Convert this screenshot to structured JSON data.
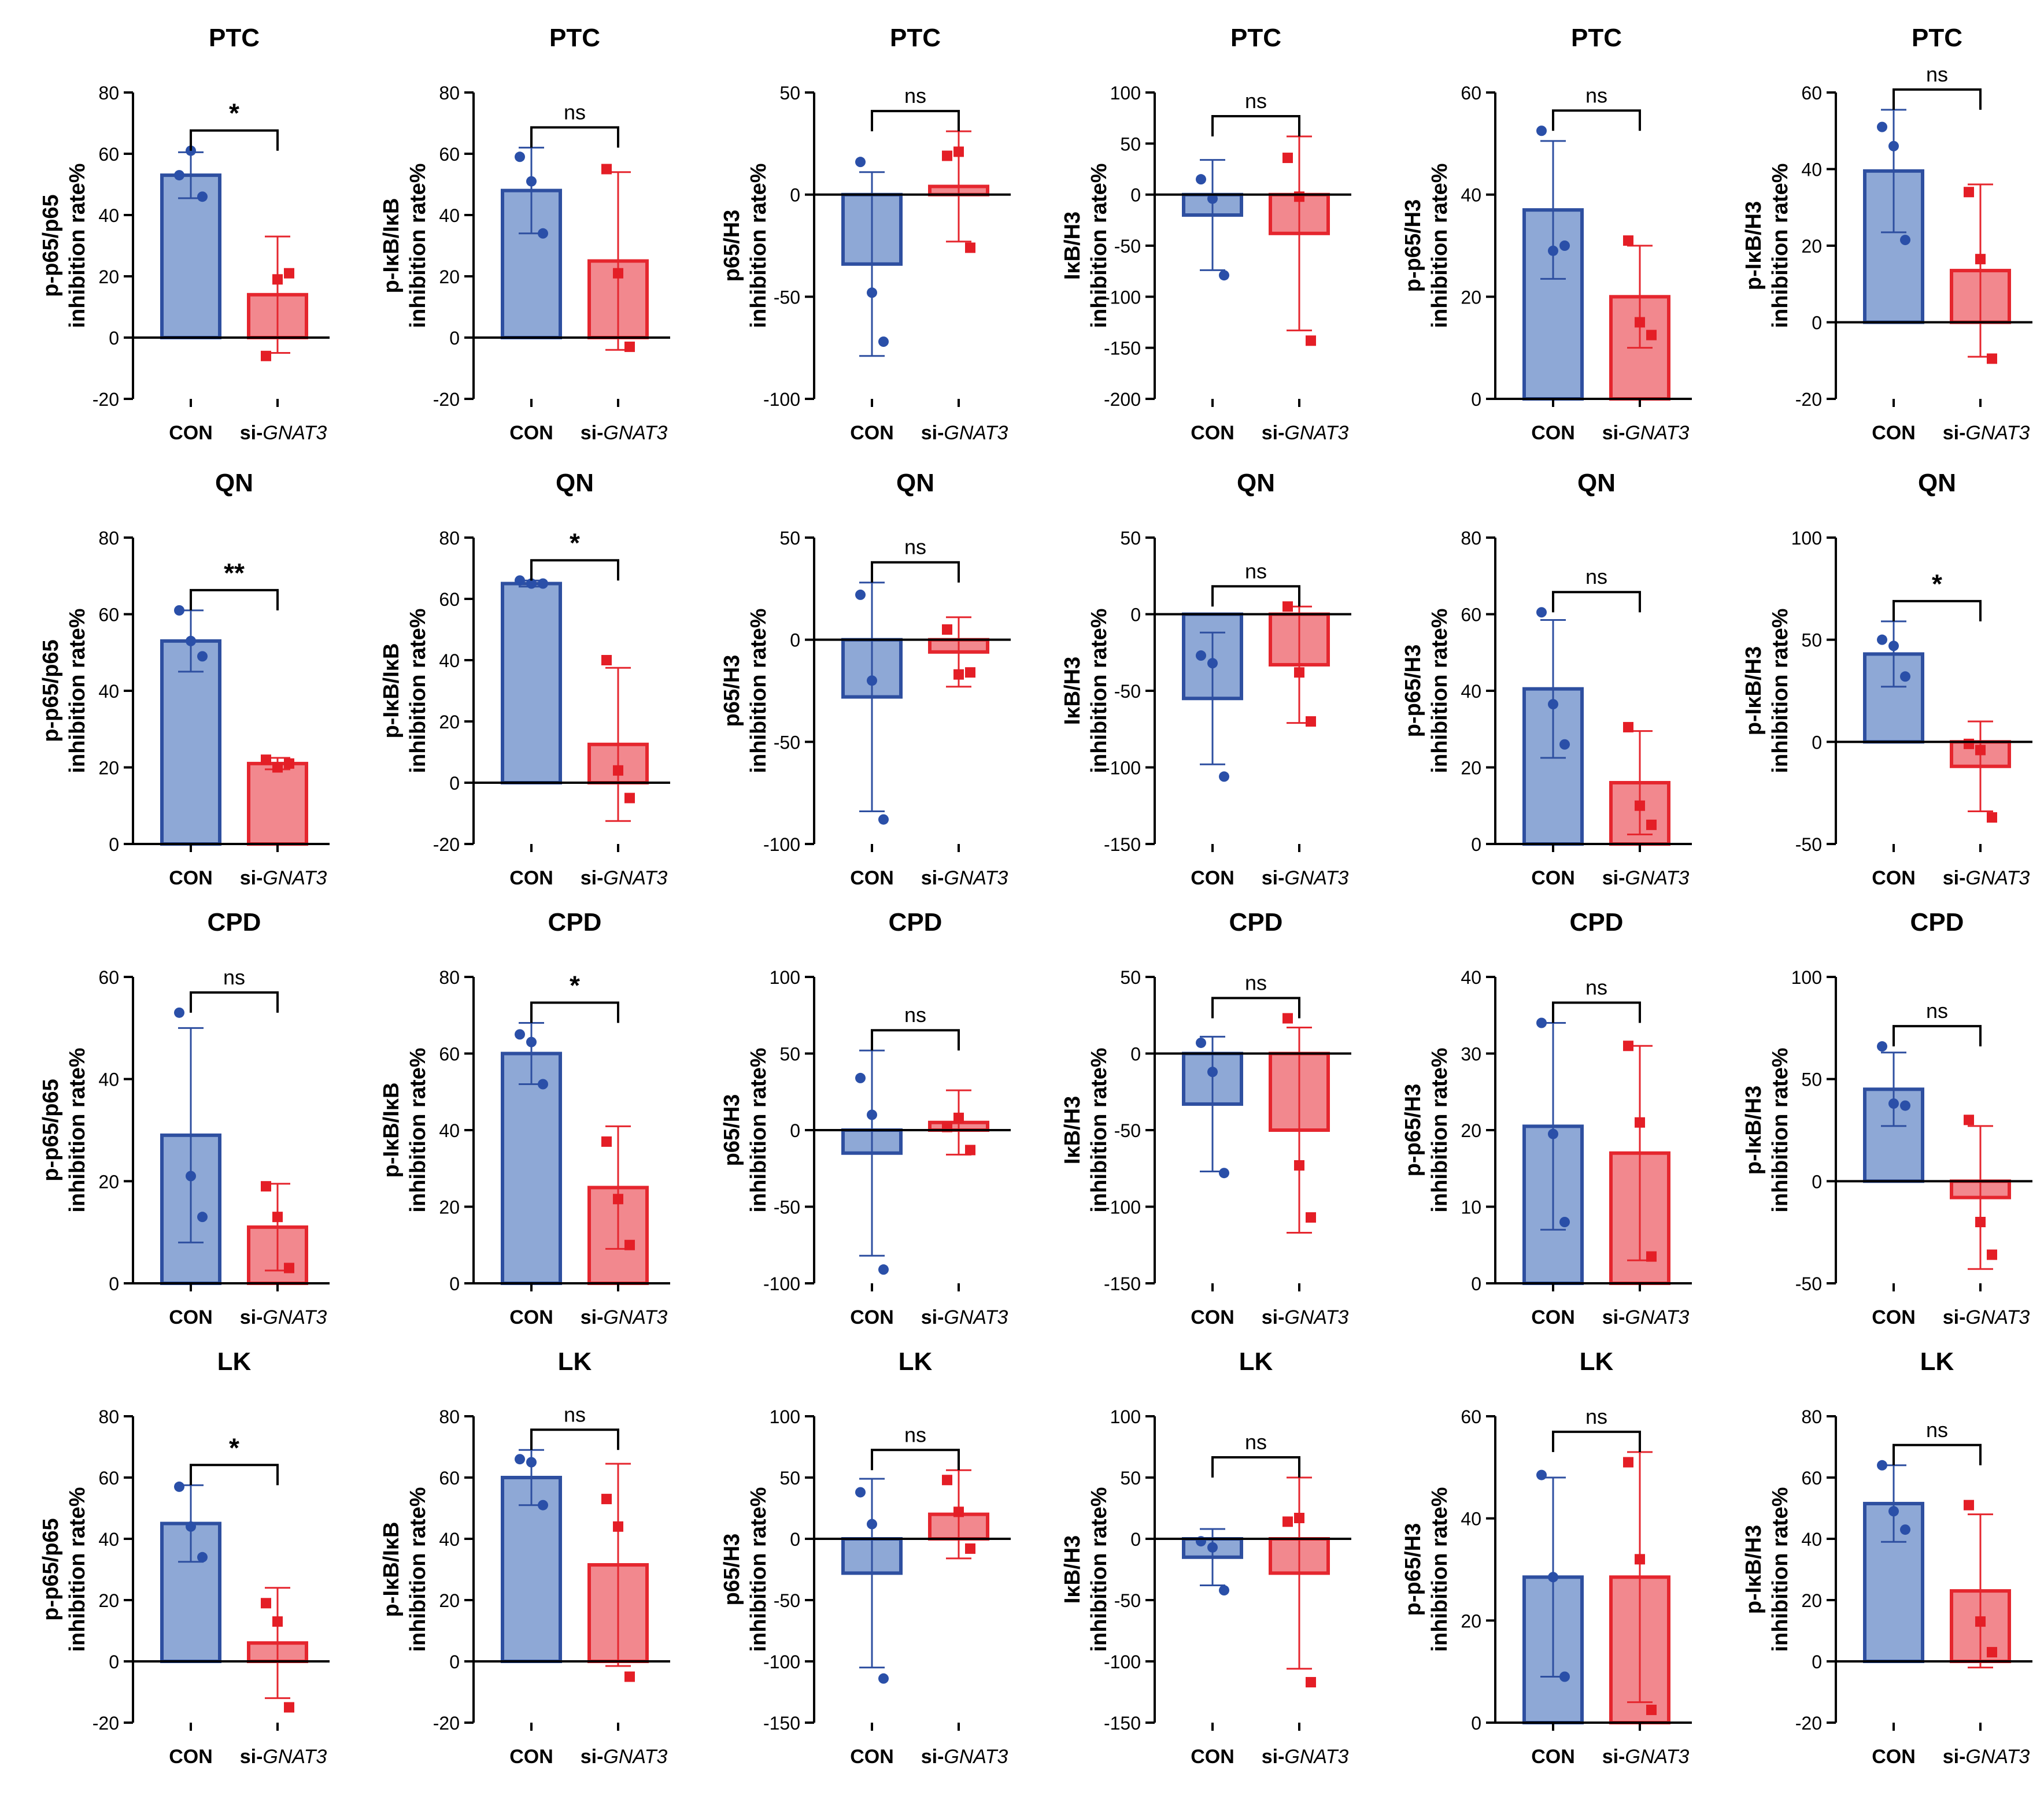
{
  "figure": {
    "group_labels": [
      "CON",
      "si-",
      "GNAT3"
    ],
    "colors": {
      "con_fill": "#8EA8D6",
      "con_stroke": "#2E4FA0",
      "con_dot": "#2A4FA8",
      "si_fill": "#F2888E",
      "si_stroke": "#E5262E",
      "si_dot": "#E41E26",
      "axis": "#000000"
    }
  },
  "chart_data": [
    {
      "type": "bar",
      "title": "PTC",
      "ylabel": [
        "p-p65/p65",
        "inhibition rate%"
      ],
      "ylim": [
        -20,
        80
      ],
      "yticks": [
        -20,
        0,
        20,
        40,
        60,
        80
      ],
      "sig": "*",
      "categories": [
        "CON",
        "si-GNAT3"
      ],
      "series": [
        {
          "name": "CON",
          "mean": 53,
          "sd": 7.5,
          "points": [
            53,
            61,
            46
          ]
        },
        {
          "name": "si-GNAT3",
          "mean": 14,
          "sd": 19,
          "points": [
            -6,
            19,
            21
          ]
        }
      ]
    },
    {
      "type": "bar",
      "title": "PTC",
      "ylabel": [
        "p-IκB/IκB",
        "inhibition rate%"
      ],
      "ylim": [
        -20,
        80
      ],
      "yticks": [
        -20,
        0,
        20,
        40,
        60,
        80
      ],
      "sig": "ns",
      "categories": [
        "CON",
        "si-GNAT3"
      ],
      "series": [
        {
          "name": "CON",
          "mean": 48,
          "sd": 14,
          "points": [
            59,
            51,
            34
          ]
        },
        {
          "name": "si-GNAT3",
          "mean": 25,
          "sd": 29,
          "points": [
            55,
            21,
            -3
          ]
        }
      ]
    },
    {
      "type": "bar",
      "title": "PTC",
      "ylabel": [
        "p65/H3",
        "inhibition rate%"
      ],
      "ylim": [
        -100,
        50
      ],
      "yticks": [
        -100,
        -50,
        0,
        50
      ],
      "sig": "ns",
      "categories": [
        "CON",
        "si-GNAT3"
      ],
      "series": [
        {
          "name": "CON",
          "mean": -34,
          "sd": 45,
          "points": [
            16,
            -48,
            -72
          ]
        },
        {
          "name": "si-GNAT3",
          "mean": 4,
          "sd": 27,
          "points": [
            19,
            21,
            -26
          ]
        }
      ]
    },
    {
      "type": "bar",
      "title": "PTC",
      "ylabel": [
        "IκB/H3",
        "inhibition rate%"
      ],
      "ylim": [
        -200,
        100
      ],
      "yticks": [
        -200,
        -150,
        -100,
        -50,
        0,
        50,
        100
      ],
      "sig": "ns",
      "categories": [
        "CON",
        "si-GNAT3"
      ],
      "series": [
        {
          "name": "CON",
          "mean": -20,
          "sd": 54,
          "points": [
            15,
            -4,
            -79
          ]
        },
        {
          "name": "si-GNAT3",
          "mean": -38,
          "sd": 95,
          "points": [
            36,
            -2,
            -143
          ]
        }
      ]
    },
    {
      "type": "bar",
      "title": "PTC",
      "ylabel": [
        "p-p65/H3",
        "inhibition rate%"
      ],
      "ylim": [
        0,
        60
      ],
      "yticks": [
        0,
        20,
        40,
        60
      ],
      "sig": "ns",
      "categories": [
        "CON",
        "si-GNAT3"
      ],
      "series": [
        {
          "name": "CON",
          "mean": 37,
          "sd": 13.5,
          "points": [
            52.5,
            29,
            30
          ]
        },
        {
          "name": "si-GNAT3",
          "mean": 20,
          "sd": 10,
          "points": [
            31,
            15,
            12.5
          ]
        }
      ]
    },
    {
      "type": "bar",
      "title": "PTC",
      "ylabel": [
        "p-IκB/H3",
        "inhibition rate%"
      ],
      "ylim": [
        -20,
        60
      ],
      "yticks": [
        -20,
        0,
        20,
        40,
        60
      ],
      "sig": "ns",
      "categories": [
        "CON",
        "si-GNAT3"
      ],
      "series": [
        {
          "name": "CON",
          "mean": 39.5,
          "sd": 16,
          "points": [
            51,
            46,
            21.5
          ]
        },
        {
          "name": "si-GNAT3",
          "mean": 13.5,
          "sd": 22.5,
          "points": [
            34,
            16.5,
            -9.5
          ]
        }
      ]
    },
    {
      "type": "bar",
      "title": "QN",
      "ylabel": [
        "p-p65/p65",
        "inhibition rate%"
      ],
      "ylim": [
        0,
        80
      ],
      "yticks": [
        0,
        20,
        40,
        60,
        80
      ],
      "sig": "**",
      "categories": [
        "CON",
        "si-GNAT3"
      ],
      "series": [
        {
          "name": "CON",
          "mean": 53,
          "sd": 8,
          "points": [
            61,
            53,
            49
          ]
        },
        {
          "name": "si-GNAT3",
          "mean": 21,
          "sd": 1.5,
          "points": [
            22,
            20,
            21
          ]
        }
      ]
    },
    {
      "type": "bar",
      "title": "QN",
      "ylabel": [
        "p-IκB/IκB",
        "inhibition rate%"
      ],
      "ylim": [
        -20,
        80
      ],
      "yticks": [
        -20,
        0,
        20,
        40,
        60,
        80
      ],
      "sig": "*",
      "categories": [
        "CON",
        "si-GNAT3"
      ],
      "series": [
        {
          "name": "CON",
          "mean": 65,
          "sd": 1,
          "points": [
            66,
            65,
            65
          ]
        },
        {
          "name": "si-GNAT3",
          "mean": 12.5,
          "sd": 25,
          "points": [
            40,
            4,
            -5
          ]
        }
      ]
    },
    {
      "type": "bar",
      "title": "QN",
      "ylabel": [
        "p65/H3",
        "inhibition rate%"
      ],
      "ylim": [
        -100,
        50
      ],
      "yticks": [
        -100,
        -50,
        0,
        50
      ],
      "sig": "ns",
      "categories": [
        "CON",
        "si-GNAT3"
      ],
      "series": [
        {
          "name": "CON",
          "mean": -28,
          "sd": 56,
          "points": [
            22,
            -20,
            -88
          ]
        },
        {
          "name": "si-GNAT3",
          "mean": -6,
          "sd": 17,
          "points": [
            5,
            -17,
            -16
          ]
        }
      ]
    },
    {
      "type": "bar",
      "title": "QN",
      "ylabel": [
        "IκB/H3",
        "inhibition rate%"
      ],
      "ylim": [
        -150,
        50
      ],
      "yticks": [
        -150,
        -100,
        -50,
        0,
        50
      ],
      "sig": "ns",
      "categories": [
        "CON",
        "si-GNAT3"
      ],
      "series": [
        {
          "name": "CON",
          "mean": -55,
          "sd": 43,
          "points": [
            -27,
            -32,
            -106
          ]
        },
        {
          "name": "si-GNAT3",
          "mean": -33,
          "sd": 38,
          "points": [
            5,
            -38,
            -70
          ]
        }
      ]
    },
    {
      "type": "bar",
      "title": "QN",
      "ylabel": [
        "p-p65/H3",
        "inhibition rate%"
      ],
      "ylim": [
        0,
        80
      ],
      "yticks": [
        0,
        20,
        40,
        60,
        80
      ],
      "sig": "ns",
      "categories": [
        "CON",
        "si-GNAT3"
      ],
      "series": [
        {
          "name": "CON",
          "mean": 40.5,
          "sd": 18,
          "points": [
            60.5,
            36.5,
            26
          ]
        },
        {
          "name": "si-GNAT3",
          "mean": 16,
          "sd": 13.5,
          "points": [
            30.5,
            10,
            5
          ]
        }
      ]
    },
    {
      "type": "bar",
      "title": "QN",
      "ylabel": [
        "p-IκB/H3",
        "inhibition rate%"
      ],
      "ylim": [
        -50,
        100
      ],
      "yticks": [
        -50,
        0,
        50,
        100
      ],
      "sig": "*",
      "categories": [
        "CON",
        "si-GNAT3"
      ],
      "series": [
        {
          "name": "CON",
          "mean": 43,
          "sd": 16,
          "points": [
            50,
            47,
            32
          ]
        },
        {
          "name": "si-GNAT3",
          "mean": -12,
          "sd": 22,
          "points": [
            -1,
            -4,
            -37
          ]
        }
      ]
    },
    {
      "type": "bar",
      "title": "CPD",
      "ylabel": [
        "p-p65/p65",
        "inhibition rate%"
      ],
      "ylim": [
        0,
        60
      ],
      "yticks": [
        0,
        20,
        40,
        60
      ],
      "sig": "ns",
      "categories": [
        "CON",
        "si-GNAT3"
      ],
      "series": [
        {
          "name": "CON",
          "mean": 29,
          "sd": 21,
          "points": [
            53,
            21,
            13
          ]
        },
        {
          "name": "si-GNAT3",
          "mean": 11,
          "sd": 8.5,
          "points": [
            19,
            13,
            3
          ]
        }
      ]
    },
    {
      "type": "bar",
      "title": "CPD",
      "ylabel": [
        "p-IκB/IκB",
        "inhibition rate%"
      ],
      "ylim": [
        0,
        80
      ],
      "yticks": [
        0,
        20,
        40,
        60,
        80
      ],
      "sig": "*",
      "categories": [
        "CON",
        "si-GNAT3"
      ],
      "series": [
        {
          "name": "CON",
          "mean": 60,
          "sd": 8,
          "points": [
            65,
            63,
            52
          ]
        },
        {
          "name": "si-GNAT3",
          "mean": 25,
          "sd": 16,
          "points": [
            37,
            22,
            10
          ]
        }
      ]
    },
    {
      "type": "bar",
      "title": "CPD",
      "ylabel": [
        "p65/H3",
        "inhibition rate%"
      ],
      "ylim": [
        -100,
        100
      ],
      "yticks": [
        -100,
        -50,
        0,
        50,
        100
      ],
      "sig": "ns",
      "categories": [
        "CON",
        "si-GNAT3"
      ],
      "series": [
        {
          "name": "CON",
          "mean": -15,
          "sd": 67,
          "points": [
            34,
            10,
            -91
          ]
        },
        {
          "name": "si-GNAT3",
          "mean": 5,
          "sd": 21,
          "points": [
            2,
            8,
            -13
          ]
        }
      ]
    },
    {
      "type": "bar",
      "title": "CPD",
      "ylabel": [
        "IκB/H3",
        "inhibition rate%"
      ],
      "ylim": [
        -150,
        50
      ],
      "yticks": [
        -150,
        -100,
        -50,
        0,
        50
      ],
      "sig": "ns",
      "categories": [
        "CON",
        "si-GNAT3"
      ],
      "series": [
        {
          "name": "CON",
          "mean": -33,
          "sd": 44,
          "points": [
            7,
            -12,
            -78
          ]
        },
        {
          "name": "si-GNAT3",
          "mean": -50,
          "sd": 67,
          "points": [
            23,
            -73,
            -107
          ]
        }
      ]
    },
    {
      "type": "bar",
      "title": "CPD",
      "ylabel": [
        "p-p65/H3",
        "inhibition rate%"
      ],
      "ylim": [
        0,
        40
      ],
      "yticks": [
        0,
        10,
        20,
        30,
        40
      ],
      "sig": "ns",
      "categories": [
        "CON",
        "si-GNAT3"
      ],
      "series": [
        {
          "name": "CON",
          "mean": 20.5,
          "sd": 13.5,
          "points": [
            34,
            19.5,
            8
          ]
        },
        {
          "name": "si-GNAT3",
          "mean": 17,
          "sd": 14,
          "points": [
            31,
            21,
            3.5
          ]
        }
      ]
    },
    {
      "type": "bar",
      "title": "CPD",
      "ylabel": [
        "p-IκB/H3",
        "inhibition rate%"
      ],
      "ylim": [
        -50,
        100
      ],
      "yticks": [
        -50,
        0,
        50,
        100
      ],
      "sig": "ns",
      "categories": [
        "CON",
        "si-GNAT3"
      ],
      "series": [
        {
          "name": "CON",
          "mean": 45,
          "sd": 18,
          "points": [
            66,
            38,
            37
          ]
        },
        {
          "name": "si-GNAT3",
          "mean": -8,
          "sd": 35,
          "points": [
            30,
            -20,
            -36
          ]
        }
      ]
    },
    {
      "type": "bar",
      "title": "LK",
      "ylabel": [
        "p-p65/p65",
        "inhibition rate%"
      ],
      "ylim": [
        -20,
        80
      ],
      "yticks": [
        -20,
        0,
        20,
        40,
        60,
        80
      ],
      "sig": "*",
      "categories": [
        "CON",
        "si-GNAT3"
      ],
      "series": [
        {
          "name": "CON",
          "mean": 45,
          "sd": 12.5,
          "points": [
            57,
            44,
            34
          ]
        },
        {
          "name": "si-GNAT3",
          "mean": 6,
          "sd": 18,
          "points": [
            19,
            13,
            -15
          ]
        }
      ]
    },
    {
      "type": "bar",
      "title": "LK",
      "ylabel": [
        "p-IκB/IκB",
        "inhibition rate%"
      ],
      "ylim": [
        -20,
        80
      ],
      "yticks": [
        -20,
        0,
        20,
        40,
        60,
        80
      ],
      "sig": "ns",
      "categories": [
        "CON",
        "si-GNAT3"
      ],
      "series": [
        {
          "name": "CON",
          "mean": 60,
          "sd": 9,
          "points": [
            66,
            65,
            51
          ]
        },
        {
          "name": "si-GNAT3",
          "mean": 31.5,
          "sd": 33,
          "points": [
            53,
            44,
            -5
          ]
        }
      ]
    },
    {
      "type": "bar",
      "title": "LK",
      "ylabel": [
        "p65/H3",
        "inhibition rate%"
      ],
      "ylim": [
        -150,
        100
      ],
      "yticks": [
        -150,
        -100,
        -50,
        0,
        50,
        100
      ],
      "sig": "ns",
      "categories": [
        "CON",
        "si-GNAT3"
      ],
      "series": [
        {
          "name": "CON",
          "mean": -28,
          "sd": 77,
          "points": [
            38,
            12,
            -114
          ]
        },
        {
          "name": "si-GNAT3",
          "mean": 20,
          "sd": 36,
          "points": [
            48,
            22,
            -8
          ]
        }
      ]
    },
    {
      "type": "bar",
      "title": "LK",
      "ylabel": [
        "IκB/H3",
        "inhibition rate%"
      ],
      "ylim": [
        -150,
        100
      ],
      "yticks": [
        -150,
        -100,
        -50,
        0,
        50,
        100
      ],
      "sig": "ns",
      "categories": [
        "CON",
        "si-GNAT3"
      ],
      "series": [
        {
          "name": "CON",
          "mean": -15,
          "sd": 23,
          "points": [
            -2,
            -7,
            -42
          ]
        },
        {
          "name": "si-GNAT3",
          "mean": -28,
          "sd": 78,
          "points": [
            14,
            17,
            -117
          ]
        }
      ]
    },
    {
      "type": "bar",
      "title": "LK",
      "ylabel": [
        "p-p65/H3",
        "inhibition rate%"
      ],
      "ylim": [
        0,
        60
      ],
      "yticks": [
        0,
        20,
        40,
        60
      ],
      "sig": "ns",
      "categories": [
        "CON",
        "si-GNAT3"
      ],
      "series": [
        {
          "name": "CON",
          "mean": 28.5,
          "sd": 19.5,
          "points": [
            48.5,
            28.5,
            9
          ]
        },
        {
          "name": "si-GNAT3",
          "mean": 28.5,
          "sd": 24.5,
          "points": [
            51,
            32,
            2.5
          ]
        }
      ]
    },
    {
      "type": "bar",
      "title": "LK",
      "ylabel": [
        "p-IκB/H3",
        "inhibition rate%"
      ],
      "ylim": [
        -20,
        80
      ],
      "yticks": [
        -20,
        0,
        20,
        40,
        60,
        80
      ],
      "sig": "ns",
      "categories": [
        "CON",
        "si-GNAT3"
      ],
      "series": [
        {
          "name": "CON",
          "mean": 51.5,
          "sd": 12.5,
          "points": [
            64,
            49,
            43
          ]
        },
        {
          "name": "si-GNAT3",
          "mean": 23,
          "sd": 25,
          "points": [
            51,
            13,
            3
          ]
        }
      ]
    }
  ]
}
